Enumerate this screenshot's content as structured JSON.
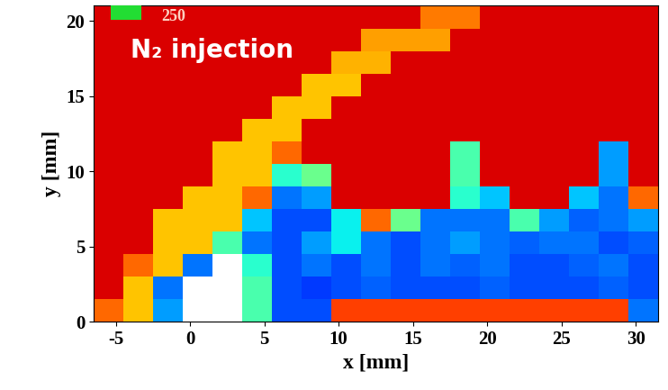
{
  "chart_data": {
    "type": "heatmap",
    "x_label": "x [mm]",
    "y_label": "y [mm]",
    "xlim": [
      -6.5,
      31.5
    ],
    "ylim": [
      0,
      21
    ],
    "xticks": [
      -5,
      0,
      5,
      10,
      15,
      20,
      25,
      30
    ],
    "yticks": [
      0,
      5,
      10,
      15,
      20
    ],
    "x": [
      -5.5,
      -3.5,
      -1.5,
      0.5,
      2.5,
      4.5,
      6.5,
      8.5,
      10.5,
      12.5,
      14.5,
      16.5,
      18.5,
      20.5,
      22.5,
      24.5,
      26.5,
      28.5,
      30.5
    ],
    "y": [
      0.75,
      2.25,
      3.75,
      5.25,
      6.75,
      8.25,
      9.75,
      11.25,
      12.75,
      14.25,
      15.75,
      17.25,
      18.75,
      20.25
    ],
    "values": [
      [
        200,
        175,
        70,
        null,
        null,
        110,
        50,
        50,
        210,
        210,
        210,
        210,
        210,
        210,
        210,
        210,
        210,
        210,
        60
      ],
      [
        230,
        175,
        60,
        null,
        null,
        110,
        50,
        45,
        50,
        55,
        50,
        50,
        50,
        55,
        50,
        50,
        50,
        55,
        50
      ],
      [
        230,
        200,
        175,
        60,
        null,
        100,
        50,
        60,
        50,
        60,
        50,
        60,
        55,
        60,
        50,
        50,
        55,
        60,
        50
      ],
      [
        230,
        230,
        175,
        175,
        110,
        60,
        50,
        70,
        90,
        60,
        50,
        60,
        70,
        60,
        55,
        60,
        60,
        50,
        55
      ],
      [
        230,
        230,
        175,
        175,
        175,
        80,
        50,
        50,
        90,
        200,
        120,
        60,
        60,
        60,
        110,
        70,
        55,
        60,
        70
      ],
      [
        230,
        230,
        230,
        175,
        175,
        200,
        60,
        70,
        230,
        230,
        230,
        230,
        100,
        80,
        230,
        230,
        80,
        60,
        200
      ],
      [
        230,
        230,
        230,
        230,
        175,
        175,
        100,
        120,
        230,
        230,
        230,
        230,
        110,
        230,
        230,
        230,
        230,
        70,
        230
      ],
      [
        230,
        230,
        230,
        230,
        175,
        175,
        200,
        230,
        230,
        230,
        230,
        230,
        110,
        230,
        230,
        230,
        230,
        70,
        230
      ],
      [
        230,
        230,
        230,
        230,
        230,
        175,
        175,
        230,
        230,
        230,
        230,
        230,
        230,
        230,
        230,
        230,
        230,
        230,
        230
      ],
      [
        230,
        230,
        230,
        230,
        230,
        230,
        175,
        175,
        230,
        230,
        230,
        230,
        230,
        230,
        230,
        230,
        230,
        230,
        230
      ],
      [
        230,
        230,
        230,
        230,
        230,
        230,
        230,
        175,
        175,
        230,
        230,
        230,
        230,
        230,
        230,
        230,
        230,
        230,
        230
      ],
      [
        230,
        230,
        230,
        230,
        230,
        230,
        230,
        230,
        180,
        180,
        230,
        230,
        230,
        230,
        230,
        230,
        230,
        230,
        230
      ],
      [
        230,
        230,
        230,
        230,
        230,
        230,
        230,
        230,
        230,
        185,
        185,
        185,
        230,
        230,
        230,
        230,
        230,
        230,
        230
      ],
      [
        230,
        230,
        230,
        230,
        230,
        230,
        230,
        230,
        230,
        230,
        230,
        195,
        195,
        230,
        230,
        230,
        230,
        230,
        230
      ]
    ],
    "color_range": [
      0,
      250
    ],
    "key": {
      "label": "250",
      "color": "#22dd33"
    },
    "annotations": [
      {
        "text": "N₂ injection",
        "color": "#ffffff"
      }
    ]
  }
}
